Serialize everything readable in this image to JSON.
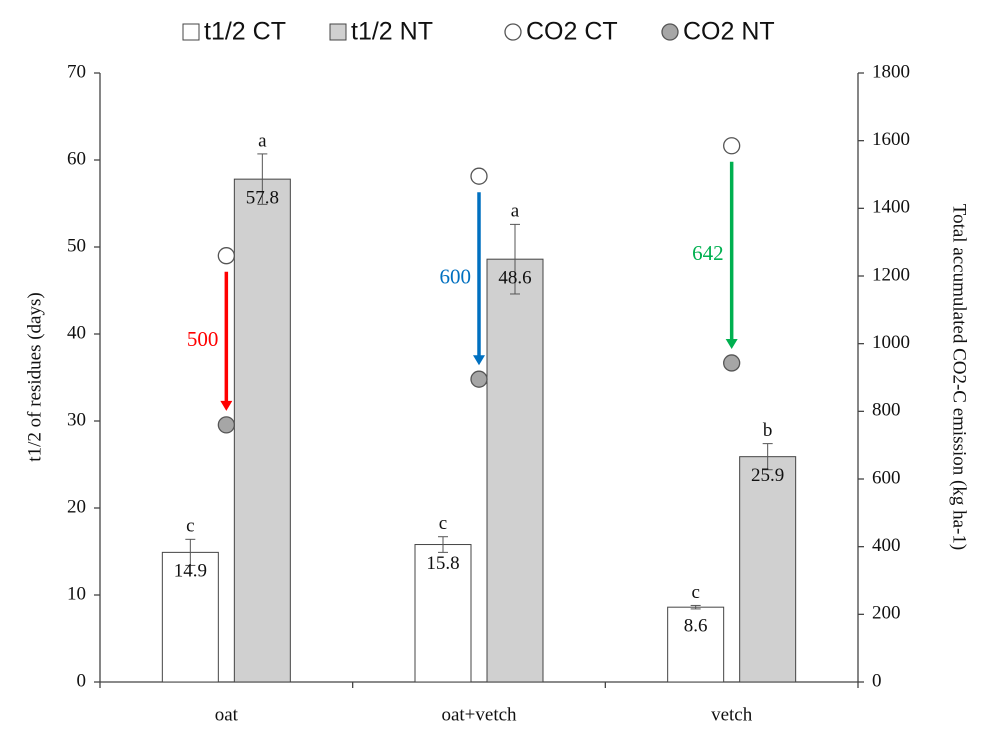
{
  "chart_data": {
    "type": "bar",
    "categories": [
      "oat",
      "oat+vetch",
      "vetch"
    ],
    "y_label": "t1/2 of residues  (days)",
    "y2_label": "Total accumulated  CO2-C emission  (kg ha-1)",
    "ylim": [
      0,
      70
    ],
    "yticks": [
      0,
      10,
      20,
      30,
      40,
      50,
      60,
      70
    ],
    "y2lim": [
      0,
      1800
    ],
    "y2ticks": [
      0,
      200,
      400,
      600,
      800,
      1000,
      1200,
      1400,
      1600,
      1800
    ],
    "series": [
      {
        "name": "t1/2 CT",
        "type": "bar",
        "color": "#ffffff",
        "values": [
          14.9,
          15.8,
          8.6
        ],
        "errors": [
          1.5,
          0.9,
          0.2
        ],
        "letters": [
          "c",
          "c",
          "c"
        ]
      },
      {
        "name": "t1/2 NT",
        "type": "bar",
        "color": "#d0d0d0",
        "values": [
          57.8,
          48.6,
          25.9
        ],
        "errors": [
          2.9,
          4.0,
          1.5
        ],
        "letters": [
          "a",
          "a",
          "b"
        ]
      },
      {
        "name": "CO2 CT",
        "type": "scatter",
        "axis": "y2",
        "color": "#ffffff",
        "values": [
          1260,
          1495,
          1585
        ]
      },
      {
        "name": "CO2 NT",
        "type": "scatter",
        "axis": "y2",
        "color": "#a6a6a6",
        "values": [
          760,
          895,
          943
        ]
      }
    ],
    "annotations": [
      {
        "text": "500",
        "color": "#ff0000"
      },
      {
        "text": "600",
        "color": "#0070c0"
      },
      {
        "text": "642",
        "color": "#00b050"
      }
    ]
  }
}
